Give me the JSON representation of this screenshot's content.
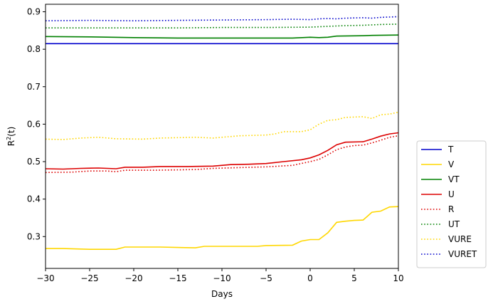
{
  "chart_data": {
    "type": "line",
    "xlabel": "Days",
    "ylabel_main": "R",
    "ylabel_sup": "2",
    "ylabel_tail": "(t)",
    "xlim": [
      -30,
      10
    ],
    "ylim": [
      0.215,
      0.92
    ],
    "xticks": [
      -30,
      -25,
      -20,
      -15,
      -10,
      -5,
      0,
      5,
      10
    ],
    "yticks": [
      0.3,
      0.4,
      0.5,
      0.6,
      0.7,
      0.8,
      0.9
    ],
    "legend_position": "outside-right",
    "series": [
      {
        "name": "T",
        "color": "#0000cc",
        "style": "solid",
        "points": [
          [
            -30,
            0.815
          ],
          [
            10,
            0.815
          ]
        ]
      },
      {
        "name": "V",
        "color": "#ffd700",
        "style": "solid",
        "points": [
          [
            -30,
            0.268
          ],
          [
            -28,
            0.268
          ],
          [
            -25,
            0.266
          ],
          [
            -22,
            0.266
          ],
          [
            -21,
            0.272
          ],
          [
            -17,
            0.272
          ],
          [
            -13,
            0.27
          ],
          [
            -12,
            0.274
          ],
          [
            -8,
            0.274
          ],
          [
            -6,
            0.274
          ],
          [
            -5,
            0.276
          ],
          [
            -2,
            0.277
          ],
          [
            -1,
            0.288
          ],
          [
            0,
            0.292
          ],
          [
            1,
            0.292
          ],
          [
            2,
            0.31
          ],
          [
            3,
            0.338
          ],
          [
            4,
            0.341
          ],
          [
            5,
            0.343
          ],
          [
            6,
            0.344
          ],
          [
            7,
            0.365
          ],
          [
            8,
            0.368
          ],
          [
            9,
            0.379
          ],
          [
            10,
            0.38
          ]
        ]
      },
      {
        "name": "VT",
        "color": "#008000",
        "style": "solid",
        "points": [
          [
            -30,
            0.834
          ],
          [
            -25,
            0.833
          ],
          [
            -20,
            0.831
          ],
          [
            -15,
            0.83
          ],
          [
            -10,
            0.83
          ],
          [
            -5,
            0.83
          ],
          [
            -2,
            0.83
          ],
          [
            0,
            0.832
          ],
          [
            1,
            0.831
          ],
          [
            2,
            0.832
          ],
          [
            3,
            0.835
          ],
          [
            6,
            0.836
          ],
          [
            7,
            0.837
          ],
          [
            10,
            0.838
          ]
        ]
      },
      {
        "name": "U",
        "color": "#dd0000",
        "style": "solid",
        "points": [
          [
            -30,
            0.481
          ],
          [
            -28,
            0.48
          ],
          [
            -26,
            0.482
          ],
          [
            -24,
            0.483
          ],
          [
            -22,
            0.481
          ],
          [
            -21,
            0.485
          ],
          [
            -19,
            0.485
          ],
          [
            -17,
            0.487
          ],
          [
            -14,
            0.487
          ],
          [
            -11,
            0.488
          ],
          [
            -9,
            0.492
          ],
          [
            -7,
            0.493
          ],
          [
            -5,
            0.495
          ],
          [
            -3,
            0.5
          ],
          [
            -1,
            0.505
          ],
          [
            0,
            0.51
          ],
          [
            1,
            0.518
          ],
          [
            2,
            0.53
          ],
          [
            3,
            0.545
          ],
          [
            4,
            0.552
          ],
          [
            6,
            0.553
          ],
          [
            7,
            0.56
          ],
          [
            8,
            0.568
          ],
          [
            9,
            0.574
          ],
          [
            10,
            0.577
          ]
        ]
      },
      {
        "name": "R",
        "color": "#dd0000",
        "style": "dotted",
        "points": [
          [
            -30,
            0.471
          ],
          [
            -27,
            0.472
          ],
          [
            -25,
            0.475
          ],
          [
            -23,
            0.475
          ],
          [
            -22,
            0.473
          ],
          [
            -21,
            0.477
          ],
          [
            -18,
            0.477
          ],
          [
            -15,
            0.478
          ],
          [
            -13,
            0.479
          ],
          [
            -11,
            0.482
          ],
          [
            -8,
            0.484
          ],
          [
            -5,
            0.486
          ],
          [
            -2,
            0.49
          ],
          [
            0,
            0.5
          ],
          [
            1,
            0.506
          ],
          [
            2,
            0.518
          ],
          [
            3,
            0.532
          ],
          [
            4,
            0.539
          ],
          [
            5,
            0.543
          ],
          [
            6,
            0.544
          ],
          [
            7,
            0.55
          ],
          [
            8,
            0.557
          ],
          [
            9,
            0.565
          ],
          [
            10,
            0.569
          ]
        ]
      },
      {
        "name": "UT",
        "color": "#008000",
        "style": "dotted",
        "points": [
          [
            -30,
            0.857
          ],
          [
            -25,
            0.857
          ],
          [
            -20,
            0.857
          ],
          [
            -15,
            0.857
          ],
          [
            -10,
            0.858
          ],
          [
            -5,
            0.858
          ],
          [
            0,
            0.859
          ],
          [
            2,
            0.861
          ],
          [
            4,
            0.863
          ],
          [
            6,
            0.864
          ],
          [
            8,
            0.866
          ],
          [
            10,
            0.867
          ]
        ]
      },
      {
        "name": "VURE",
        "color": "#ffd700",
        "style": "dotted",
        "points": [
          [
            -30,
            0.56
          ],
          [
            -28,
            0.559
          ],
          [
            -26,
            0.563
          ],
          [
            -24,
            0.565
          ],
          [
            -22,
            0.561
          ],
          [
            -19,
            0.56
          ],
          [
            -17,
            0.563
          ],
          [
            -13,
            0.565
          ],
          [
            -11,
            0.563
          ],
          [
            -10,
            0.565
          ],
          [
            -8,
            0.569
          ],
          [
            -5,
            0.571
          ],
          [
            -4,
            0.574
          ],
          [
            -3,
            0.58
          ],
          [
            -1,
            0.58
          ],
          [
            0,
            0.585
          ],
          [
            1,
            0.6
          ],
          [
            2,
            0.61
          ],
          [
            3,
            0.612
          ],
          [
            4,
            0.618
          ],
          [
            6,
            0.62
          ],
          [
            7,
            0.615
          ],
          [
            8,
            0.625
          ],
          [
            9,
            0.627
          ],
          [
            10,
            0.632
          ]
        ]
      },
      {
        "name": "VURET",
        "color": "#0000cc",
        "style": "dotted",
        "points": [
          [
            -30,
            0.876
          ],
          [
            -25,
            0.877
          ],
          [
            -20,
            0.876
          ],
          [
            -15,
            0.877
          ],
          [
            -10,
            0.878
          ],
          [
            -5,
            0.879
          ],
          [
            -2,
            0.88
          ],
          [
            0,
            0.879
          ],
          [
            1,
            0.881
          ],
          [
            2,
            0.882
          ],
          [
            3,
            0.881
          ],
          [
            4,
            0.883
          ],
          [
            6,
            0.884
          ],
          [
            7,
            0.883
          ],
          [
            8,
            0.885
          ],
          [
            10,
            0.887
          ]
        ]
      }
    ]
  }
}
